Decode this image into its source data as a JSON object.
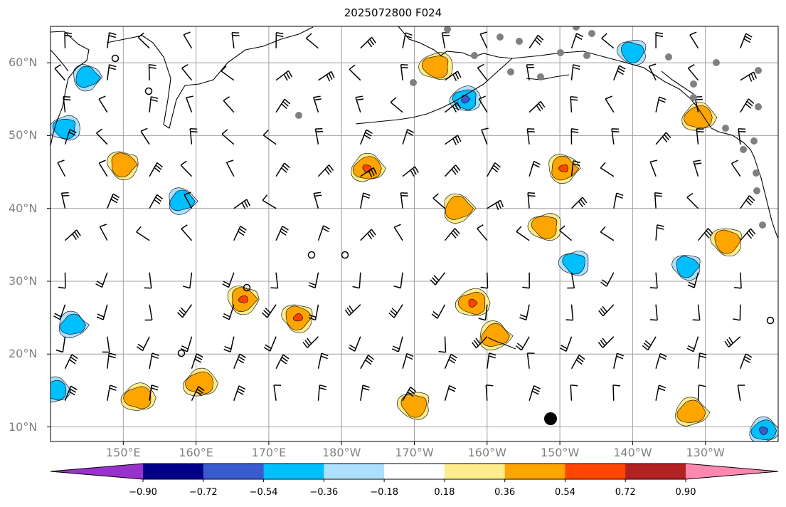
{
  "title": "2025072800 F024",
  "map": {
    "lon_range": [
      140,
      240
    ],
    "lat_range": [
      8,
      65
    ],
    "lon_ticks": [
      {
        "value": 150,
        "label": "150°E"
      },
      {
        "value": 160,
        "label": "160°E"
      },
      {
        "value": 170,
        "label": "170°E"
      },
      {
        "value": 180,
        "label": "180°W"
      },
      {
        "value": 190,
        "label": "170°W"
      },
      {
        "value": 200,
        "label": "160°W"
      },
      {
        "value": 210,
        "label": "150°W"
      },
      {
        "value": 220,
        "label": "140°W"
      },
      {
        "value": 230,
        "label": "130°W"
      }
    ],
    "lat_ticks": [
      {
        "value": 10,
        "label": "10°N"
      },
      {
        "value": 20,
        "label": "20°N"
      },
      {
        "value": 30,
        "label": "30°N"
      },
      {
        "value": 40,
        "label": "40°N"
      },
      {
        "value": 50,
        "label": "50°N"
      },
      {
        "value": 60,
        "label": "60°N"
      }
    ],
    "grid": true,
    "wind_barbs": "regular grid of wind barbs across the domain"
  },
  "colorbar": {
    "levels": [
      "−0.90",
      "−0.72",
      "−0.54",
      "−0.36",
      "−0.18",
      "0.18",
      "0.36",
      "0.54",
      "0.72",
      "0.90"
    ],
    "colors": [
      "#9932CC",
      "#00008B",
      "#3A5BCD",
      "#00BFFF",
      "#ADDFFF",
      "#FFFFFF",
      "#FFEC8B",
      "#FFA500",
      "#FF4500",
      "#B22222",
      "#FF88B0"
    ],
    "extend": "both"
  },
  "chart_data": {
    "type": "heatmap",
    "title": "2025072800 F024",
    "lon_range": [
      140,
      240
    ],
    "lat_range": [
      8,
      65
    ],
    "positive_regions": [
      {
        "lon": 183.5,
        "lat": 45.5,
        "max": 0.72
      },
      {
        "lon": 174,
        "lat": 25,
        "max": 0.72
      },
      {
        "lon": 160.5,
        "lat": 16,
        "max": 0.54
      },
      {
        "lon": 166.5,
        "lat": 27.5,
        "max": 0.72
      },
      {
        "lon": 198,
        "lat": 27,
        "max": 0.72
      },
      {
        "lon": 210.5,
        "lat": 45.5,
        "max": 0.72
      },
      {
        "lon": 193,
        "lat": 59.5,
        "max": 0.54
      },
      {
        "lon": 196,
        "lat": 40,
        "max": 0.54
      },
      {
        "lon": 208,
        "lat": 37.5,
        "max": 0.54
      },
      {
        "lon": 201,
        "lat": 22.5,
        "max": 0.54
      },
      {
        "lon": 190,
        "lat": 13,
        "max": 0.54
      },
      {
        "lon": 228,
        "lat": 12,
        "max": 0.54
      },
      {
        "lon": 233,
        "lat": 35.5,
        "max": 0.54
      },
      {
        "lon": 229,
        "lat": 52.5,
        "max": 0.54
      },
      {
        "lon": 150,
        "lat": 46,
        "max": 0.54
      },
      {
        "lon": 152,
        "lat": 14,
        "max": 0.54
      }
    ],
    "negative_regions": [
      {
        "lon": 197,
        "lat": 55,
        "min": -0.72
      },
      {
        "lon": 145,
        "lat": 58,
        "min": -0.54
      },
      {
        "lon": 142,
        "lat": 51,
        "min": -0.54
      },
      {
        "lon": 158,
        "lat": 41,
        "min": -0.54
      },
      {
        "lon": 212,
        "lat": 32.5,
        "min": -0.54
      },
      {
        "lon": 143,
        "lat": 24,
        "min": -0.54
      },
      {
        "lon": 220,
        "lat": 61.5,
        "min": -0.54
      },
      {
        "lon": 238,
        "lat": 9.5,
        "min": -0.72
      },
      {
        "lon": 227.5,
        "lat": 32,
        "min": -0.54
      },
      {
        "lon": 140.5,
        "lat": 15,
        "min": -0.54
      }
    ]
  }
}
